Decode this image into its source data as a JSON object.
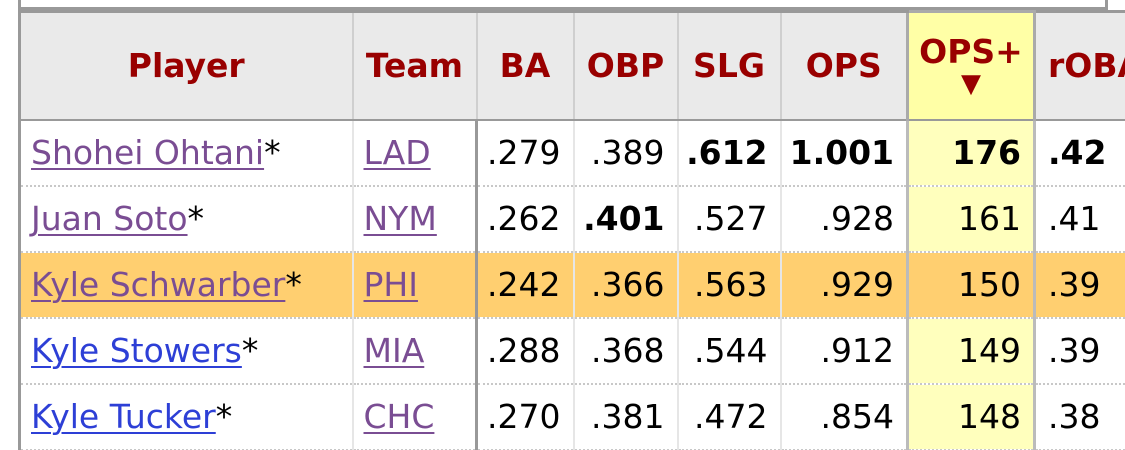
{
  "columns": {
    "player": "Player",
    "team": "Team",
    "ba": "BA",
    "obp": "OBP",
    "slg": "SLG",
    "ops": "OPS",
    "ops_plus": "OPS+",
    "sort_arrow": "▼",
    "robp": "rOBA"
  },
  "rows": [
    {
      "player": "Shohei Ohtani",
      "marker": "*",
      "team": "LAD",
      "ba": ".279",
      "obp": ".389",
      "slg": ".612",
      "ops": "1.001",
      "ops_plus": "176",
      "robp": ".42"
    },
    {
      "player": "Juan Soto",
      "marker": "*",
      "team": "NYM",
      "ba": ".262",
      "obp": ".401",
      "slg": ".527",
      "ops": ".928",
      "ops_plus": "161",
      "robp": ".41"
    },
    {
      "player": "Kyle Schwarber",
      "marker": "*",
      "team": "PHI",
      "ba": ".242",
      "obp": ".366",
      "slg": ".563",
      "ops": ".929",
      "ops_plus": "150",
      "robp": ".39"
    },
    {
      "player": "Kyle Stowers",
      "marker": "*",
      "team": "MIA",
      "ba": ".288",
      "obp": ".368",
      "slg": ".544",
      "ops": ".912",
      "ops_plus": "149",
      "robp": ".39"
    },
    {
      "player": "Kyle Tucker",
      "marker": "*",
      "team": "CHC",
      "ba": ".270",
      "obp": ".381",
      "slg": ".472",
      "ops": ".854",
      "ops_plus": "148",
      "robp": ".38"
    }
  ],
  "colors": {
    "header_text": "#990000",
    "header_bg": "#eaeaea",
    "sorted_col_bg": "#ffffbd",
    "highlight_row_bg": "#ffcf70",
    "visited_link": "#7a4d93",
    "link": "#2d3fd6"
  },
  "sorted_column": "ops_plus",
  "highlighted_row": "Kyle Schwarber"
}
